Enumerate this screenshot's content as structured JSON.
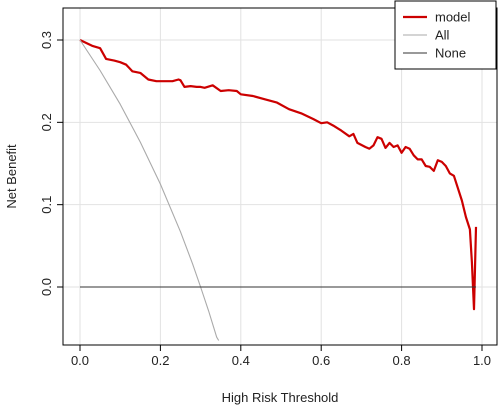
{
  "chart_data": {
    "type": "line",
    "title": "",
    "xlabel": "High Risk Threshold",
    "ylabel": "Net Benefit",
    "xlim": [
      0,
      1
    ],
    "ylim": [
      -0.065,
      0.33
    ],
    "x_ticks": [
      0.0,
      0.2,
      0.4,
      0.6,
      0.8,
      1.0
    ],
    "x_tick_labels": [
      "0.0",
      "0.2",
      "0.4",
      "0.6",
      "0.8",
      "1.0"
    ],
    "y_ticks": [
      0.0,
      0.1,
      0.2,
      0.3
    ],
    "y_tick_labels": [
      "0.0",
      "0.1",
      "0.2",
      "0.3"
    ],
    "grid": true,
    "legend_position": "top-right",
    "series": [
      {
        "name": "model",
        "color": "#cc0000",
        "x": [
          0.0,
          0.03,
          0.05,
          0.065,
          0.085,
          0.1,
          0.115,
          0.13,
          0.15,
          0.17,
          0.19,
          0.21,
          0.23,
          0.245,
          0.25,
          0.26,
          0.275,
          0.29,
          0.3,
          0.31,
          0.33,
          0.35,
          0.37,
          0.39,
          0.4,
          0.43,
          0.46,
          0.49,
          0.52,
          0.55,
          0.58,
          0.6,
          0.615,
          0.63,
          0.65,
          0.67,
          0.68,
          0.69,
          0.71,
          0.72,
          0.73,
          0.74,
          0.75,
          0.76,
          0.77,
          0.78,
          0.79,
          0.8,
          0.81,
          0.82,
          0.83,
          0.84,
          0.85,
          0.86,
          0.87,
          0.88,
          0.89,
          0.9,
          0.91,
          0.92,
          0.93,
          0.94,
          0.95,
          0.96,
          0.97,
          0.975,
          0.98,
          0.985
        ],
        "y": [
          0.3,
          0.293,
          0.29,
          0.277,
          0.275,
          0.273,
          0.27,
          0.262,
          0.26,
          0.252,
          0.25,
          0.25,
          0.25,
          0.252,
          0.251,
          0.243,
          0.244,
          0.243,
          0.243,
          0.242,
          0.245,
          0.238,
          0.239,
          0.238,
          0.234,
          0.232,
          0.228,
          0.224,
          0.216,
          0.211,
          0.204,
          0.199,
          0.2,
          0.196,
          0.19,
          0.183,
          0.186,
          0.175,
          0.17,
          0.168,
          0.172,
          0.182,
          0.18,
          0.169,
          0.175,
          0.17,
          0.172,
          0.163,
          0.17,
          0.168,
          0.16,
          0.155,
          0.155,
          0.147,
          0.146,
          0.141,
          0.154,
          0.152,
          0.147,
          0.138,
          0.135,
          0.12,
          0.105,
          0.085,
          0.07,
          0.03,
          -0.027,
          0.073
        ]
      },
      {
        "name": "All",
        "color": "#aaaaaa",
        "x": [
          0.0,
          0.05,
          0.1,
          0.15,
          0.2,
          0.25,
          0.28,
          0.3,
          0.32,
          0.34,
          0.345
        ],
        "y": [
          0.3,
          0.263,
          0.222,
          0.176,
          0.125,
          0.067,
          0.028,
          0.0,
          -0.029,
          -0.061,
          -0.065
        ]
      },
      {
        "name": "None",
        "color": "#333333",
        "x": [
          0.0,
          0.985
        ],
        "y": [
          0.0,
          0.0
        ]
      }
    ]
  }
}
